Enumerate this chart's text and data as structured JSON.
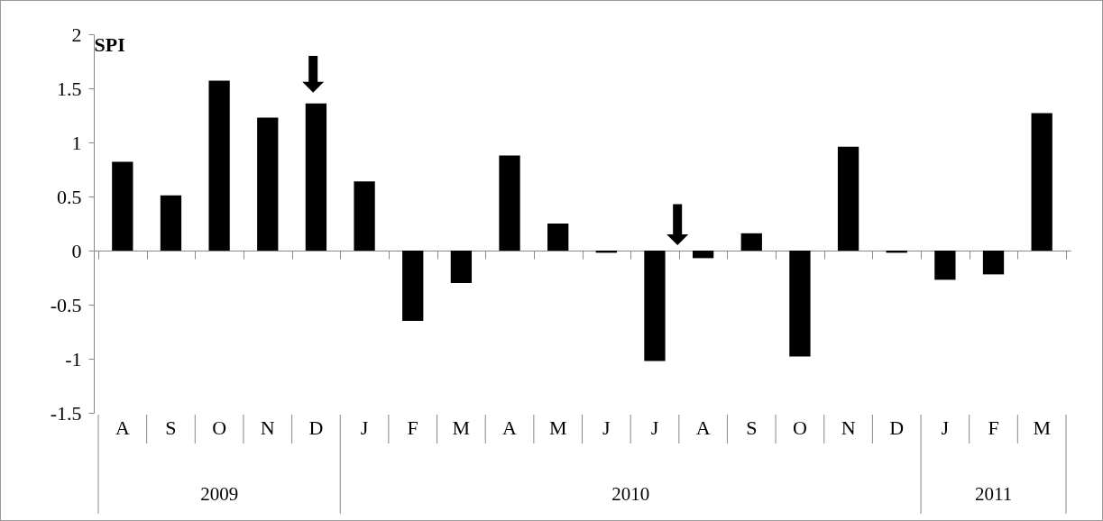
{
  "chart_data": {
    "type": "bar",
    "ylabel": "SPI",
    "color": "#000000",
    "categories": [
      "A",
      "S",
      "O",
      "N",
      "D",
      "J",
      "F",
      "M",
      "A",
      "M",
      "J",
      "J",
      "A",
      "S",
      "O",
      "N",
      "D",
      "J",
      "F",
      "M"
    ],
    "values": [
      0.82,
      0.51,
      1.57,
      1.23,
      1.36,
      0.64,
      -0.65,
      -0.3,
      0.88,
      0.25,
      -0.02,
      -1.02,
      -0.07,
      0.16,
      -0.98,
      0.96,
      -0.02,
      -0.27,
      -0.22,
      1.27
    ],
    "annotations": [
      "2009",
      "2010",
      "2011"
    ],
    "ylim": [
      -1.5,
      2
    ],
    "yticks": [
      -1.5,
      -1,
      -0.5,
      0,
      0.5,
      1,
      1.5,
      2
    ]
  }
}
